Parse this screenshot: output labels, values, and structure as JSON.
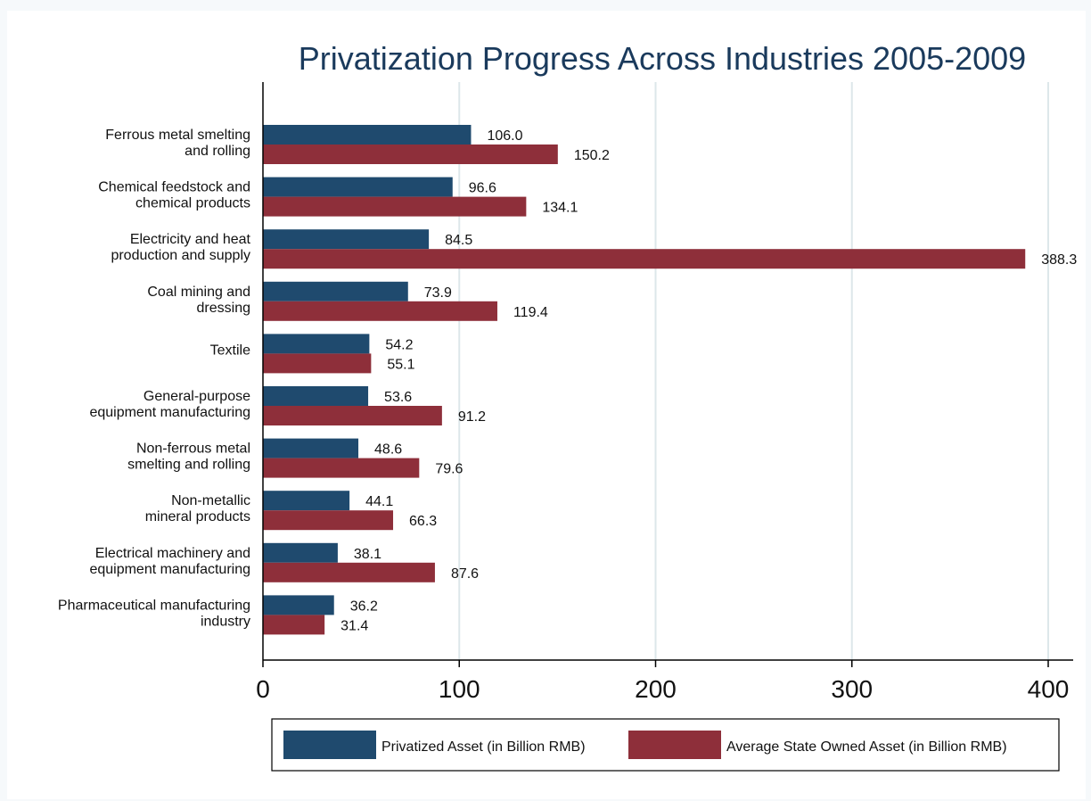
{
  "chart_data": {
    "type": "bar",
    "orientation": "horizontal",
    "title": "Privatization Progress Across Industries 2005-2009",
    "categories": [
      [
        "Ferrous metal smelting",
        "and rolling"
      ],
      [
        "Chemical feedstock and",
        "chemical products"
      ],
      [
        "Electricity and heat",
        "production and supply"
      ],
      [
        "Coal mining and",
        "dressing"
      ],
      [
        "Textile"
      ],
      [
        "General-purpose",
        "equipment manufacturing"
      ],
      [
        "Non-ferrous metal",
        "smelting and rolling"
      ],
      [
        "Non-metallic",
        "mineral products"
      ],
      [
        "Electrical machinery and",
        "equipment manufacturing"
      ],
      [
        "Pharmaceutical manufacturing",
        "industry"
      ]
    ],
    "series": [
      {
        "name": "Privatized Asset (in Billion RMB)",
        "color": "#1f4a6e",
        "values": [
          106.0,
          96.6,
          84.5,
          73.9,
          54.2,
          53.6,
          48.6,
          44.1,
          38.1,
          36.2
        ],
        "labels": [
          "106.0",
          "96.6",
          "84.5",
          "73.9",
          "54.2",
          "53.6",
          "48.6",
          "44.1",
          "38.1",
          "36.2"
        ]
      },
      {
        "name": "Average State Owned Asset (in Billion RMB)",
        "color": "#8e2f3a",
        "values": [
          150.2,
          134.1,
          388.3,
          119.4,
          55.1,
          91.2,
          79.6,
          66.3,
          87.6,
          31.4
        ],
        "labels": [
          "150.2",
          "134.1",
          "388.3",
          "119.4",
          "55.1",
          "91.2",
          "79.6",
          "66.3",
          "87.6",
          "31.4"
        ]
      }
    ],
    "xlim": [
      0,
      400
    ],
    "xticks": [
      0,
      100,
      200,
      300,
      400
    ],
    "xtick_labels": [
      "0",
      "100",
      "200",
      "300",
      "400"
    ],
    "grid": true,
    "legend_position": "bottom",
    "colors": {
      "grid": "#dde7ea",
      "axis": "#000000",
      "title": "#1a3a5c"
    }
  }
}
